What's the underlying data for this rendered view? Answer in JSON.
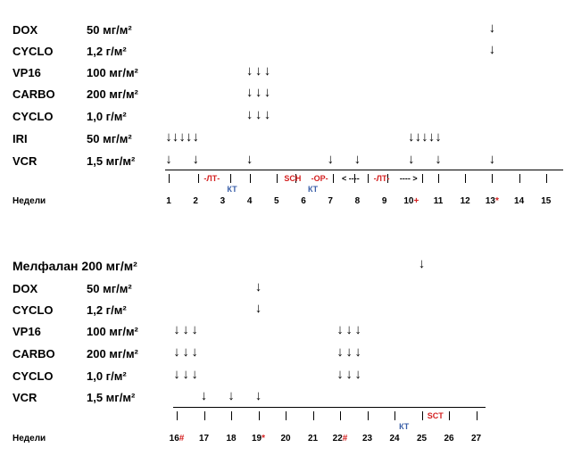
{
  "panel1": {
    "rows": [
      {
        "drug": "DOX",
        "dose": "50 мг/м²"
      },
      {
        "drug": "CYCLO",
        "dose": "1,2 г/м²"
      },
      {
        "drug": "VP16",
        "dose": "100 мг/м²"
      },
      {
        "drug": "CARBO",
        "dose": "200 мг/м²"
      },
      {
        "drug": "CYCLO",
        "dose": "1,0 г/м²"
      },
      {
        "drug": "IRI",
        "dose": "50 мг/м²"
      },
      {
        "drug": "VCR",
        "dose": "1,5 мг/м²"
      }
    ],
    "week_label": "Недели",
    "weeks": [
      "1",
      "2",
      "3",
      "4",
      "5",
      "6",
      "7",
      "8",
      "9",
      "10",
      "11",
      "12",
      "13",
      "14",
      "15"
    ],
    "week_marks": {
      "10": "+",
      "13": "*"
    },
    "arrows": [
      {
        "row": 0,
        "weeks": [
          13
        ]
      },
      {
        "row": 1,
        "weeks": [
          13
        ]
      },
      {
        "row": 2,
        "weeks": [
          4,
          4.33,
          4.66
        ]
      },
      {
        "row": 3,
        "weeks": [
          4,
          4.33,
          4.66
        ]
      },
      {
        "row": 4,
        "weeks": [
          4,
          4.33,
          4.66
        ]
      },
      {
        "row": 5,
        "weeks": [
          1,
          1.25,
          1.5,
          1.75,
          2,
          10,
          10.25,
          10.5,
          10.75,
          11
        ]
      },
      {
        "row": 6,
        "weeks": [
          1,
          2,
          4,
          7,
          8,
          10,
          11,
          13
        ]
      }
    ],
    "phases": [
      {
        "text": "-ЛТ-",
        "week": 2.6,
        "color": "red",
        "level": "top"
      },
      {
        "text": "КТ",
        "week": 3.35,
        "color": "blue",
        "level": "bottom"
      },
      {
        "text": "SCH",
        "week": 5.6,
        "color": "red",
        "level": "top"
      },
      {
        "text": "-OP-",
        "week": 6.6,
        "color": "red",
        "level": "top"
      },
      {
        "text": "КТ",
        "week": 6.35,
        "color": "blue",
        "level": "bottom"
      },
      {
        "text": "< ----",
        "week": 7.75,
        "color": "plain",
        "level": "top"
      },
      {
        "text": "-ЛТ-",
        "week": 8.9,
        "color": "red",
        "level": "top"
      },
      {
        "text": "---- >",
        "week": 9.9,
        "color": "plain",
        "level": "top"
      }
    ],
    "ticks": [
      1,
      2.1,
      3.3,
      4,
      5,
      5.7,
      7.1,
      7.9,
      8.4,
      9.1,
      10.4,
      11,
      12,
      13,
      14,
      15
    ]
  },
  "panel2": {
    "rows": [
      {
        "drug": "Мелфалан 200 мг/м²",
        "dose": "",
        "title": true
      },
      {
        "drug": "DOX",
        "dose": "50 мг/м²"
      },
      {
        "drug": "CYCLO",
        "dose": "1,2 г/м²"
      },
      {
        "drug": "VP16",
        "dose": "100 мг/м²"
      },
      {
        "drug": "CARBO",
        "dose": "200 мг/м²"
      },
      {
        "drug": "CYCLO",
        "dose": "1,0 г/м²"
      },
      {
        "drug": "VCR",
        "dose": "1,5 мг/м²"
      }
    ],
    "week_label": "Недели",
    "weeks": [
      "16",
      "17",
      "18",
      "19",
      "20",
      "21",
      "22",
      "23",
      "24",
      "25",
      "26",
      "27"
    ],
    "week_marks": {
      "16": "#",
      "19": "*",
      "22": "#"
    },
    "arrows": [
      {
        "row": 0,
        "weeks": [
          25
        ]
      },
      {
        "row": 1,
        "weeks": [
          19
        ]
      },
      {
        "row": 2,
        "weeks": [
          19
        ]
      },
      {
        "row": 3,
        "weeks": [
          16,
          16.33,
          16.66,
          22,
          22.33,
          22.66
        ]
      },
      {
        "row": 4,
        "weeks": [
          16,
          16.33,
          16.66,
          22,
          22.33,
          22.66
        ]
      },
      {
        "row": 5,
        "weeks": [
          16,
          16.33,
          16.66,
          22,
          22.33,
          22.66
        ]
      },
      {
        "row": 6,
        "weeks": [
          17,
          18,
          19
        ]
      }
    ],
    "phases": [
      {
        "text": "КТ",
        "week": 24.35,
        "color": "blue",
        "level": "bottom"
      },
      {
        "text": "SCT",
        "week": 25.5,
        "color": "red",
        "level": "top"
      }
    ],
    "ticks": [
      16,
      17,
      18,
      19,
      20,
      21,
      22,
      23,
      24,
      25,
      26,
      27
    ]
  }
}
